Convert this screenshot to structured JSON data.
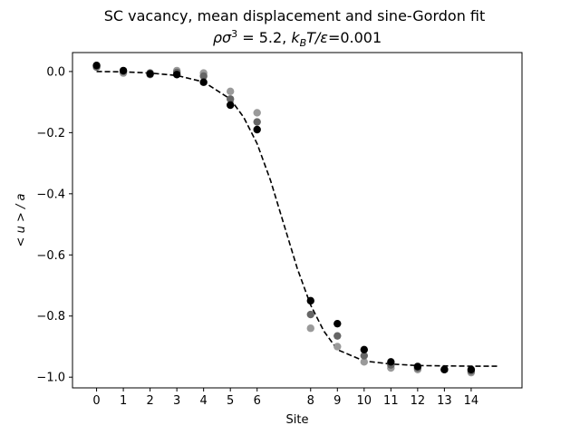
{
  "chart_data": {
    "type": "scatter",
    "title": "SC vacancy, mean displacement and sine-Gordon fit",
    "subtitle_parts": [
      "ρσ",
      "3",
      " = 5.2, ",
      "k",
      "B",
      "T/ε",
      "=0.001"
    ],
    "xlabel": "Site",
    "ylabel": "< u > / a",
    "xlim": [
      -0.9,
      15.9
    ],
    "ylim": [
      -1.035,
      0.062
    ],
    "x_ticks": [
      0,
      1,
      2,
      3,
      4,
      5,
      6,
      8,
      9,
      10,
      11,
      12,
      13,
      14
    ],
    "y_ticks": [
      0.0,
      -0.2,
      -0.4,
      -0.6,
      -0.8,
      -1.0
    ],
    "y_tick_labels": [
      "0.0",
      "−0.2",
      "−0.4",
      "−0.6",
      "−0.8",
      "−1.0"
    ],
    "grid": false,
    "legend": "none",
    "series": [
      {
        "color": "#9a9a9a",
        "points": [
          [
            0,
            0.015
          ],
          [
            1,
            -0.005
          ],
          [
            2,
            -0.01
          ],
          [
            3,
            0.003
          ],
          [
            4,
            -0.005
          ],
          [
            5,
            -0.065
          ],
          [
            6,
            -0.135
          ],
          [
            8,
            -0.84
          ],
          [
            9,
            -0.9
          ],
          [
            10,
            -0.95
          ],
          [
            11,
            -0.97
          ],
          [
            12,
            -0.975
          ],
          [
            13,
            -0.975
          ],
          [
            14,
            -0.985
          ]
        ]
      },
      {
        "color": "#666666",
        "points": [
          [
            0,
            0.015
          ],
          [
            1,
            0
          ],
          [
            2,
            -0.005
          ],
          [
            3,
            -0.003
          ],
          [
            4,
            -0.015
          ],
          [
            5,
            -0.09
          ],
          [
            6,
            -0.165
          ],
          [
            8,
            -0.795
          ],
          [
            9,
            -0.865
          ],
          [
            10,
            -0.93
          ],
          [
            11,
            -0.96
          ],
          [
            12,
            -0.97
          ],
          [
            13,
            -0.975
          ],
          [
            14,
            -0.98
          ]
        ]
      },
      {
        "color": "#000000",
        "points": [
          [
            0,
            0.02
          ],
          [
            1,
            0.003
          ],
          [
            2,
            -0.008
          ],
          [
            3,
            -0.01
          ],
          [
            4,
            -0.035
          ],
          [
            5,
            -0.11
          ],
          [
            6,
            -0.19
          ],
          [
            8,
            -0.75
          ],
          [
            9,
            -0.825
          ],
          [
            10,
            -0.91
          ],
          [
            11,
            -0.95
          ],
          [
            12,
            -0.965
          ],
          [
            13,
            -0.975
          ],
          [
            14,
            -0.975
          ]
        ]
      }
    ],
    "fit": {
      "style": "dashed",
      "color": "#000000",
      "x_range": [
        0,
        15
      ],
      "points": [
        [
          0,
          0.0
        ],
        [
          1,
          -0.001
        ],
        [
          2,
          -0.005
        ],
        [
          3,
          -0.013
        ],
        [
          4,
          -0.034
        ],
        [
          5,
          -0.09
        ],
        [
          5.5,
          -0.15
        ],
        [
          6,
          -0.236
        ],
        [
          6.5,
          -0.356
        ],
        [
          7,
          -0.5
        ],
        [
          7.5,
          -0.644
        ],
        [
          8,
          -0.764
        ],
        [
          8.5,
          -0.85
        ],
        [
          9,
          -0.91
        ],
        [
          10,
          -0.947
        ],
        [
          11,
          -0.957
        ],
        [
          12,
          -0.962
        ],
        [
          13,
          -0.963
        ],
        [
          14,
          -0.964
        ],
        [
          15,
          -0.964
        ]
      ]
    }
  }
}
